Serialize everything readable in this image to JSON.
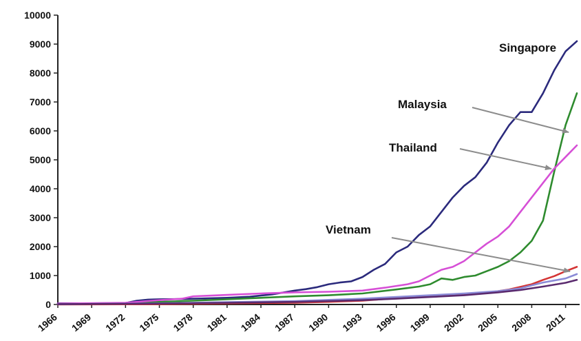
{
  "chart_data": {
    "type": "line",
    "title": "",
    "xlabel": "",
    "ylabel": "",
    "xlim": [
      1966,
      2012
    ],
    "ylim": [
      0,
      10000
    ],
    "y_ticks": [
      0,
      1000,
      2000,
      3000,
      4000,
      5000,
      6000,
      7000,
      8000,
      9000,
      10000
    ],
    "x_ticks": [
      1966,
      1969,
      1972,
      1975,
      1978,
      1981,
      1984,
      1987,
      1990,
      1993,
      1996,
      1999,
      2002,
      2005,
      2008,
      2011
    ],
    "grid": false,
    "legend": "none",
    "series": [
      {
        "color": "#2b2a7c",
        "points": [
          [
            1966,
            40
          ],
          [
            1969,
            40
          ],
          [
            1972,
            50
          ],
          [
            1973,
            130
          ],
          [
            1974,
            170
          ],
          [
            1975,
            180
          ],
          [
            1977,
            190
          ],
          [
            1979,
            210
          ],
          [
            1981,
            230
          ],
          [
            1983,
            270
          ],
          [
            1985,
            350
          ],
          [
            1987,
            480
          ],
          [
            1988,
            530
          ],
          [
            1989,
            600
          ],
          [
            1990,
            700
          ],
          [
            1991,
            760
          ],
          [
            1992,
            800
          ],
          [
            1993,
            950
          ],
          [
            1994,
            1200
          ],
          [
            1995,
            1400
          ],
          [
            1996,
            1800
          ],
          [
            1997,
            2000
          ],
          [
            1998,
            2400
          ],
          [
            1999,
            2700
          ],
          [
            2000,
            3200
          ],
          [
            2001,
            3700
          ],
          [
            2002,
            4100
          ],
          [
            2003,
            4400
          ],
          [
            2004,
            4900
          ],
          [
            2005,
            5600
          ],
          [
            2006,
            6200
          ],
          [
            2007,
            6650
          ],
          [
            2008,
            6650
          ],
          [
            2009,
            7300
          ],
          [
            2010,
            8100
          ],
          [
            2011,
            8750
          ],
          [
            2012,
            9100
          ]
        ]
      },
      {
        "color": "#2e8b2e",
        "points": [
          [
            1966,
            20
          ],
          [
            1972,
            40
          ],
          [
            1975,
            90
          ],
          [
            1978,
            130
          ],
          [
            1981,
            180
          ],
          [
            1984,
            230
          ],
          [
            1987,
            280
          ],
          [
            1990,
            320
          ],
          [
            1993,
            380
          ],
          [
            1996,
            520
          ],
          [
            1998,
            620
          ],
          [
            1999,
            700
          ],
          [
            2000,
            900
          ],
          [
            2001,
            850
          ],
          [
            2002,
            950
          ],
          [
            2003,
            1000
          ],
          [
            2004,
            1150
          ],
          [
            2005,
            1300
          ],
          [
            2006,
            1500
          ],
          [
            2007,
            1800
          ],
          [
            2008,
            2200
          ],
          [
            2009,
            2900
          ],
          [
            2010,
            4600
          ],
          [
            2011,
            6200
          ],
          [
            2012,
            7300
          ]
        ]
      },
      {
        "color": "#d64fd6",
        "points": [
          [
            1966,
            30
          ],
          [
            1972,
            60
          ],
          [
            1975,
            150
          ],
          [
            1977,
            200
          ],
          [
            1978,
            280
          ],
          [
            1981,
            330
          ],
          [
            1984,
            380
          ],
          [
            1987,
            420
          ],
          [
            1990,
            440
          ],
          [
            1993,
            480
          ],
          [
            1995,
            580
          ],
          [
            1997,
            700
          ],
          [
            1998,
            800
          ],
          [
            1999,
            1000
          ],
          [
            2000,
            1200
          ],
          [
            2001,
            1300
          ],
          [
            2002,
            1500
          ],
          [
            2003,
            1800
          ],
          [
            2004,
            2100
          ],
          [
            2005,
            2350
          ],
          [
            2006,
            2700
          ],
          [
            2007,
            3200
          ],
          [
            2008,
            3700
          ],
          [
            2009,
            4200
          ],
          [
            2010,
            4700
          ],
          [
            2011,
            5100
          ],
          [
            2012,
            5500
          ]
        ]
      },
      {
        "color": "#d43434",
        "points": [
          [
            1966,
            0
          ],
          [
            1975,
            10
          ],
          [
            1981,
            40
          ],
          [
            1987,
            60
          ],
          [
            1990,
            90
          ],
          [
            1993,
            130
          ],
          [
            1996,
            220
          ],
          [
            1999,
            300
          ],
          [
            2002,
            350
          ],
          [
            2004,
            400
          ],
          [
            2006,
            520
          ],
          [
            2008,
            700
          ],
          [
            2009,
            850
          ],
          [
            2010,
            980
          ],
          [
            2011,
            1150
          ],
          [
            2012,
            1300
          ]
        ]
      },
      {
        "color": "#8a8ad6",
        "points": [
          [
            1966,
            10
          ],
          [
            1975,
            40
          ],
          [
            1981,
            80
          ],
          [
            1987,
            120
          ],
          [
            1990,
            160
          ],
          [
            1993,
            200
          ],
          [
            1996,
            260
          ],
          [
            1999,
            320
          ],
          [
            2002,
            380
          ],
          [
            2005,
            460
          ],
          [
            2007,
            560
          ],
          [
            2009,
            760
          ],
          [
            2011,
            900
          ],
          [
            2012,
            1050
          ]
        ]
      },
      {
        "color": "#5a2a6e",
        "points": [
          [
            1966,
            10
          ],
          [
            1975,
            30
          ],
          [
            1981,
            60
          ],
          [
            1987,
            90
          ],
          [
            1990,
            120
          ],
          [
            1993,
            150
          ],
          [
            1996,
            200
          ],
          [
            1999,
            260
          ],
          [
            2002,
            320
          ],
          [
            2005,
            420
          ],
          [
            2007,
            500
          ],
          [
            2009,
            620
          ],
          [
            2011,
            750
          ],
          [
            2012,
            850
          ]
        ]
      }
    ],
    "annotations": [
      {
        "text": "Singapore"
      },
      {
        "text": "Malaysia"
      },
      {
        "text": "Thailand"
      },
      {
        "text": "Vietnam"
      }
    ]
  }
}
